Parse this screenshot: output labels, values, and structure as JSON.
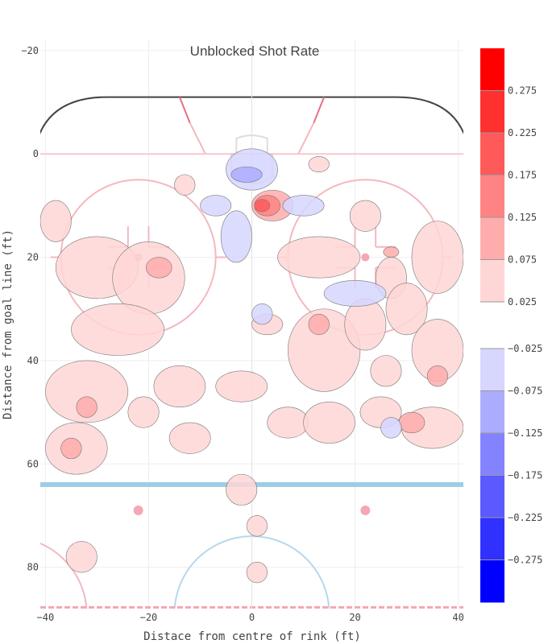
{
  "chart_data": {
    "type": "heatmap",
    "subtype": "filled-contour",
    "title": "Unblocked Shot Rate",
    "xlabel": "Distace from centre of rink (ft)",
    "ylabel": "Distance from goal line (ft)",
    "xlim": [
      -41,
      41
    ],
    "ylim": [
      -22,
      88
    ],
    "y_reversed": true,
    "grid": true,
    "x_ticks": [
      -40,
      -20,
      0,
      20,
      40
    ],
    "y_ticks": [
      -20,
      0,
      20,
      40,
      60,
      80
    ],
    "x_tick_labels": [
      "−40",
      "−20",
      "0",
      "20",
      "40"
    ],
    "y_tick_labels": [
      "−20",
      "0",
      "20",
      "40",
      "60",
      "80"
    ],
    "colorbar": {
      "positive": {
        "ticks": [
          0.025,
          0.075,
          0.125,
          0.175,
          0.225,
          0.275
        ],
        "tick_labels": [
          "0.025",
          "0.075",
          "0.125",
          "0.175",
          "0.225",
          "0.275"
        ],
        "colors": [
          "#ffd6d6",
          "#ffacac",
          "#ff8383",
          "#ff5a5a",
          "#ff3030",
          "#ff0000"
        ]
      },
      "negative": {
        "ticks": [
          -0.025,
          -0.075,
          -0.125,
          -0.175,
          -0.225,
          -0.275
        ],
        "tick_labels": [
          "−0.025",
          "−0.075",
          "−0.125",
          "−0.175",
          "−0.225",
          "−0.275"
        ],
        "colors": [
          "#d6d6ff",
          "#acacff",
          "#8383ff",
          "#5a5aff",
          "#3030ff",
          "#0000ff"
        ]
      }
    },
    "regions": [
      {
        "level": 0.025,
        "cx": -38,
        "cy": 13,
        "rx": 3,
        "ry": 4
      },
      {
        "level": 0.025,
        "cx": -30,
        "cy": 22,
        "rx": 8,
        "ry": 6
      },
      {
        "level": 0.025,
        "cx": -20,
        "cy": 24,
        "rx": 7,
        "ry": 7
      },
      {
        "level": 0.025,
        "cx": -26,
        "cy": 34,
        "rx": 9,
        "ry": 5
      },
      {
        "level": 0.025,
        "cx": -32,
        "cy": 46,
        "rx": 8,
        "ry": 6
      },
      {
        "level": 0.025,
        "cx": -34,
        "cy": 57,
        "rx": 6,
        "ry": 5
      },
      {
        "level": 0.025,
        "cx": -14,
        "cy": 45,
        "rx": 5,
        "ry": 4
      },
      {
        "level": 0.025,
        "cx": -21,
        "cy": 50,
        "rx": 3,
        "ry": 3
      },
      {
        "level": 0.025,
        "cx": -12,
        "cy": 55,
        "rx": 4,
        "ry": 3
      },
      {
        "level": 0.025,
        "cx": -2,
        "cy": 45,
        "rx": 5,
        "ry": 3
      },
      {
        "level": 0.025,
        "cx": 3,
        "cy": 33,
        "rx": 3,
        "ry": 2
      },
      {
        "level": 0.025,
        "cx": 7,
        "cy": 52,
        "rx": 4,
        "ry": 3
      },
      {
        "level": 0.025,
        "cx": 13,
        "cy": 20,
        "rx": 8,
        "ry": 4
      },
      {
        "level": 0.025,
        "cx": 14,
        "cy": 38,
        "rx": 7,
        "ry": 8
      },
      {
        "level": 0.025,
        "cx": 15,
        "cy": 52,
        "rx": 5,
        "ry": 4
      },
      {
        "level": 0.025,
        "cx": 22,
        "cy": 12,
        "rx": 3,
        "ry": 3
      },
      {
        "level": 0.025,
        "cx": 22,
        "cy": 33,
        "rx": 4,
        "ry": 5
      },
      {
        "level": 0.025,
        "cx": 25,
        "cy": 50,
        "rx": 4,
        "ry": 3
      },
      {
        "level": 0.025,
        "cx": 27,
        "cy": 24,
        "rx": 3,
        "ry": 4
      },
      {
        "level": 0.025,
        "cx": 30,
        "cy": 30,
        "rx": 4,
        "ry": 5
      },
      {
        "level": 0.025,
        "cx": 36,
        "cy": 20,
        "rx": 5,
        "ry": 7
      },
      {
        "level": 0.025,
        "cx": 36,
        "cy": 38,
        "rx": 5,
        "ry": 6
      },
      {
        "level": 0.025,
        "cx": 35,
        "cy": 53,
        "rx": 6,
        "ry": 4
      },
      {
        "level": 0.025,
        "cx": 26,
        "cy": 42,
        "rx": 3,
        "ry": 3
      },
      {
        "level": 0.025,
        "cx": -2,
        "cy": 65,
        "rx": 3,
        "ry": 3
      },
      {
        "level": 0.025,
        "cx": 1,
        "cy": 72,
        "rx": 2,
        "ry": 2
      },
      {
        "level": 0.025,
        "cx": 1,
        "cy": 81,
        "rx": 2,
        "ry": 2
      },
      {
        "level": 0.025,
        "cx": -33,
        "cy": 78,
        "rx": 3,
        "ry": 3
      },
      {
        "level": 0.025,
        "cx": 13,
        "cy": 2,
        "rx": 2,
        "ry": 1.5
      },
      {
        "level": 0.025,
        "cx": -13,
        "cy": 6,
        "rx": 2,
        "ry": 2
      },
      {
        "level": 0.075,
        "cx": -32,
        "cy": 49,
        "rx": 2,
        "ry": 2
      },
      {
        "level": 0.075,
        "cx": -35,
        "cy": 57,
        "rx": 2,
        "ry": 2
      },
      {
        "level": 0.075,
        "cx": -18,
        "cy": 22,
        "rx": 2.5,
        "ry": 2
      },
      {
        "level": 0.075,
        "cx": 13,
        "cy": 33,
        "rx": 2,
        "ry": 2
      },
      {
        "level": 0.075,
        "cx": 31,
        "cy": 52,
        "rx": 2.5,
        "ry": 2
      },
      {
        "level": 0.075,
        "cx": 36,
        "cy": 43,
        "rx": 2,
        "ry": 2
      },
      {
        "level": 0.075,
        "cx": 27,
        "cy": 19,
        "rx": 1.5,
        "ry": 1
      },
      {
        "level": 0.075,
        "cx": 4,
        "cy": 10,
        "rx": 4,
        "ry": 3
      },
      {
        "level": 0.125,
        "cx": 3,
        "cy": 10,
        "rx": 2.5,
        "ry": 2
      },
      {
        "level": 0.175,
        "cx": 2,
        "cy": 10,
        "rx": 1.5,
        "ry": 1.2
      },
      {
        "level": -0.025,
        "cx": 0,
        "cy": 3,
        "rx": 5,
        "ry": 4
      },
      {
        "level": -0.025,
        "cx": -3,
        "cy": 16,
        "rx": 3,
        "ry": 5
      },
      {
        "level": -0.025,
        "cx": 10,
        "cy": 10,
        "rx": 4,
        "ry": 2
      },
      {
        "level": -0.025,
        "cx": -7,
        "cy": 10,
        "rx": 3,
        "ry": 2
      },
      {
        "level": -0.025,
        "cx": 2,
        "cy": 31,
        "rx": 2,
        "ry": 2
      },
      {
        "level": -0.025,
        "cx": 20,
        "cy": 27,
        "rx": 6,
        "ry": 2.5
      },
      {
        "level": -0.025,
        "cx": 27,
        "cy": 53,
        "rx": 2,
        "ry": 2
      },
      {
        "level": -0.075,
        "cx": -1,
        "cy": 4,
        "rx": 3,
        "ry": 1.5
      }
    ]
  }
}
